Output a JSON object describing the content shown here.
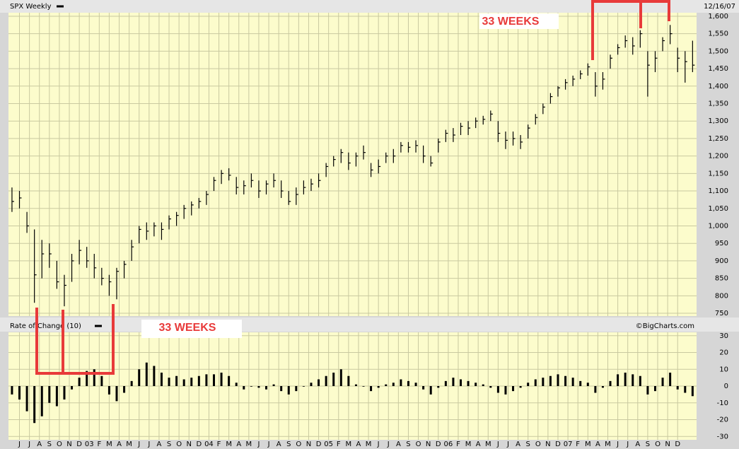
{
  "chart_data": [
    {
      "type": "ohlc",
      "title": "SPX Weekly",
      "date_label": "12/16/07",
      "annotation": "33 WEEKS",
      "color": "#000000",
      "background": "#fcfccc",
      "grid": true,
      "x": [
        -0.75,
        0,
        0.75,
        1.5,
        2.25,
        3,
        3.75,
        4.5,
        5.25,
        6,
        6.75,
        7.5,
        8.25,
        9,
        9.75,
        10.5,
        11.25,
        12,
        12.75,
        13.5,
        14.25,
        15,
        15.75,
        16.5,
        17.25,
        18,
        18.75,
        19.5,
        20.25,
        21,
        21.75,
        22.5,
        23.25,
        24,
        24.75,
        25.5,
        26.25,
        27,
        27.75,
        28.5,
        29.25,
        30,
        30.75,
        31.5,
        32.25,
        33,
        33.75,
        34.5,
        35.25,
        36,
        36.75,
        37.5,
        38.25,
        39,
        39.75,
        40.5,
        41.25,
        42,
        42.75,
        43.5,
        44.25,
        45,
        45.75,
        46.5,
        47.25,
        48,
        48.75,
        49.5,
        50.25,
        51,
        51.75,
        52.5,
        53.25,
        54,
        54.75,
        55.5,
        56.25,
        57,
        57.75,
        58.5,
        59.25,
        60,
        60.75,
        61.5,
        62.25,
        63,
        63.75,
        64.5,
        65.25,
        66,
        66.75,
        67.5
      ],
      "low": [
        1040,
        1050,
        980,
        780,
        850,
        880,
        820,
        770,
        840,
        890,
        880,
        850,
        830,
        800,
        790,
        850,
        900,
        950,
        960,
        970,
        960,
        990,
        1000,
        1020,
        1030,
        1050,
        1060,
        1100,
        1120,
        1130,
        1090,
        1090,
        1110,
        1080,
        1090,
        1110,
        1080,
        1060,
        1060,
        1090,
        1100,
        1110,
        1140,
        1170,
        1180,
        1160,
        1170,
        1190,
        1140,
        1150,
        1180,
        1180,
        1210,
        1210,
        1210,
        1180,
        1170,
        1210,
        1240,
        1240,
        1260,
        1260,
        1280,
        1290,
        1300,
        1240,
        1220,
        1230,
        1220,
        1250,
        1290,
        1320,
        1350,
        1370,
        1390,
        1400,
        1420,
        1430,
        1370,
        1390,
        1450,
        1490,
        1510,
        1490,
        1510,
        1370,
        1440,
        1500,
        1520,
        1440,
        1410,
        1440
      ],
      "high": [
        1110,
        1100,
        1040,
        990,
        960,
        950,
        900,
        860,
        920,
        960,
        940,
        920,
        880,
        860,
        880,
        900,
        960,
        1000,
        1010,
        1010,
        1010,
        1030,
        1040,
        1060,
        1070,
        1080,
        1100,
        1140,
        1160,
        1165,
        1140,
        1130,
        1150,
        1130,
        1130,
        1150,
        1130,
        1100,
        1110,
        1130,
        1135,
        1150,
        1180,
        1200,
        1220,
        1210,
        1210,
        1230,
        1180,
        1190,
        1210,
        1220,
        1240,
        1240,
        1245,
        1230,
        1200,
        1250,
        1275,
        1280,
        1295,
        1300,
        1310,
        1315,
        1330,
        1300,
        1270,
        1270,
        1260,
        1290,
        1320,
        1350,
        1380,
        1400,
        1420,
        1430,
        1445,
        1465,
        1440,
        1440,
        1490,
        1520,
        1545,
        1540,
        1560,
        1500,
        1500,
        1540,
        1575,
        1510,
        1500,
        1530
      ],
      "close": [
        1070,
        1080,
        1000,
        860,
        920,
        920,
        840,
        830,
        900,
        930,
        900,
        880,
        850,
        840,
        870,
        890,
        940,
        990,
        985,
        1000,
        990,
        1020,
        1030,
        1050,
        1060,
        1070,
        1090,
        1130,
        1150,
        1145,
        1110,
        1115,
        1130,
        1100,
        1120,
        1130,
        1100,
        1070,
        1090,
        1110,
        1120,
        1130,
        1170,
        1190,
        1210,
        1180,
        1200,
        1210,
        1160,
        1170,
        1200,
        1200,
        1230,
        1225,
        1230,
        1200,
        1180,
        1240,
        1265,
        1260,
        1285,
        1280,
        1300,
        1305,
        1320,
        1265,
        1245,
        1250,
        1240,
        1280,
        1310,
        1340,
        1370,
        1395,
        1410,
        1420,
        1435,
        1455,
        1400,
        1420,
        1480,
        1510,
        1530,
        1515,
        1550,
        1460,
        1480,
        1530,
        1550,
        1480,
        1470,
        1460
      ],
      "xlim": [
        -1.1,
        67.9
      ],
      "ylim": [
        742,
        1610
      ],
      "yticks": [
        750,
        800,
        850,
        900,
        950,
        {
          "value": 1000,
          "label": "1,000"
        },
        {
          "value": 1050,
          "label": "1,050"
        },
        {
          "value": 1100,
          "label": "1,100"
        },
        {
          "value": 1150,
          "label": "1,150"
        },
        {
          "value": 1200,
          "label": "1,200"
        },
        {
          "value": 1250,
          "label": "1,250"
        },
        {
          "value": 1300,
          "label": "1,300"
        },
        {
          "value": 1350,
          "label": "1,350"
        },
        {
          "value": 1400,
          "label": "1,400"
        },
        {
          "value": 1450,
          "label": "1,450"
        },
        {
          "value": 1500,
          "label": "1,500"
        },
        {
          "value": 1550,
          "label": "1,550"
        },
        {
          "value": 1600,
          "label": "1,600"
        }
      ],
      "xticks": [
        {
          "value": 0,
          "label": "J"
        },
        {
          "value": 1,
          "label": "J"
        },
        {
          "value": 2,
          "label": "A"
        },
        {
          "value": 3,
          "label": "S"
        },
        {
          "value": 4,
          "label": "O"
        },
        {
          "value": 5,
          "label": "N"
        },
        {
          "value": 6,
          "label": "D"
        },
        {
          "value": 7,
          "label": "03"
        },
        {
          "value": 8,
          "label": "F"
        },
        {
          "value": 9,
          "label": "M"
        },
        {
          "value": 10,
          "label": "A"
        },
        {
          "value": 11,
          "label": "M"
        },
        {
          "value": 12,
          "label": "J"
        },
        {
          "value": 13,
          "label": "J"
        },
        {
          "value": 14,
          "label": "A"
        },
        {
          "value": 15,
          "label": "S"
        },
        {
          "value": 16,
          "label": "O"
        },
        {
          "value": 17,
          "label": "N"
        },
        {
          "value": 18,
          "label": "D"
        },
        {
          "value": 19,
          "label": "04"
        },
        {
          "value": 20,
          "label": "F"
        },
        {
          "value": 21,
          "label": "M"
        },
        {
          "value": 22,
          "label": "A"
        },
        {
          "value": 23,
          "label": "M"
        },
        {
          "value": 24,
          "label": "J"
        },
        {
          "value": 25,
          "label": "J"
        },
        {
          "value": 26,
          "label": "A"
        },
        {
          "value": 27,
          "label": "S"
        },
        {
          "value": 28,
          "label": "O"
        },
        {
          "value": 29,
          "label": "N"
        },
        {
          "value": 30,
          "label": "D"
        },
        {
          "value": 31,
          "label": "05"
        },
        {
          "value": 32,
          "label": "F"
        },
        {
          "value": 33,
          "label": "M"
        },
        {
          "value": 34,
          "label": "A"
        },
        {
          "value": 35,
          "label": "M"
        },
        {
          "value": 36,
          "label": "J"
        },
        {
          "value": 37,
          "label": "J"
        },
        {
          "value": 38,
          "label": "A"
        },
        {
          "value": 39,
          "label": "S"
        },
        {
          "value": 40,
          "label": "O"
        },
        {
          "value": 41,
          "label": "N"
        },
        {
          "value": 42,
          "label": "D"
        },
        {
          "value": 43,
          "label": "06"
        },
        {
          "value": 44,
          "label": "F"
        },
        {
          "value": 45,
          "label": "M"
        },
        {
          "value": 46,
          "label": "A"
        },
        {
          "value": 47,
          "label": "M"
        },
        {
          "value": 48,
          "label": "J"
        },
        {
          "value": 49,
          "label": "J"
        },
        {
          "value": 50,
          "label": "A"
        },
        {
          "value": 51,
          "label": "S"
        },
        {
          "value": 52,
          "label": "O"
        },
        {
          "value": 53,
          "label": "N"
        },
        {
          "value": 54,
          "label": "D"
        },
        {
          "value": 55,
          "label": "07"
        },
        {
          "value": 56,
          "label": "F"
        },
        {
          "value": 57,
          "label": "M"
        },
        {
          "value": 58,
          "label": "A"
        },
        {
          "value": 59,
          "label": "M"
        },
        {
          "value": 60,
          "label": "J"
        },
        {
          "value": 61,
          "label": "J"
        },
        {
          "value": 62,
          "label": "A"
        },
        {
          "value": 63,
          "label": "S"
        },
        {
          "value": 64,
          "label": "O"
        },
        {
          "value": 65,
          "label": "N"
        },
        {
          "value": 66,
          "label": "D"
        }
      ]
    },
    {
      "type": "bar",
      "title": "Rate of Change (10)",
      "source": "©BigCharts.com",
      "annotation": "33 WEEKS",
      "color": "#000000",
      "grid": true,
      "values": [
        -5,
        -8,
        -15,
        -22,
        -18,
        -10,
        -12,
        -8,
        -2,
        5,
        9,
        10,
        6,
        -5,
        -9,
        -4,
        3,
        10,
        14,
        12,
        8,
        5,
        6,
        4,
        5,
        6,
        7,
        7,
        8,
        6,
        2,
        -2,
        0,
        -1,
        -2,
        1,
        -3,
        -5,
        -3,
        0,
        2,
        4,
        6,
        8,
        10,
        6,
        1,
        0,
        -3,
        -1,
        1,
        2,
        4,
        3,
        2,
        -2,
        -5,
        -1,
        3,
        5,
        4,
        3,
        2,
        1,
        -1,
        -4,
        -5,
        -3,
        -1,
        2,
        4,
        5,
        6,
        7,
        6,
        5,
        3,
        2,
        -4,
        -1,
        3,
        7,
        8,
        7,
        6,
        -5,
        -3,
        5,
        8,
        -2,
        -4,
        -6
      ],
      "ylim": [
        -32,
        32
      ],
      "yticks": [
        -30,
        -20,
        -10,
        0,
        10,
        20,
        30
      ]
    }
  ]
}
